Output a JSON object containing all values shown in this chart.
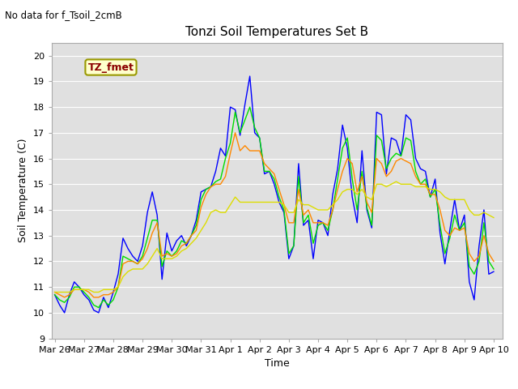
{
  "title": "Tonzi Soil Temperatures Set B",
  "ylabel": "Soil Temperature (C)",
  "xlabel": "Time",
  "no_data_text": "No data for f_Tsoil_2cmB",
  "tz_fmet_label": "TZ_fmet",
  "ylim": [
    9.0,
    20.5
  ],
  "yticks": [
    9.0,
    10.0,
    11.0,
    12.0,
    13.0,
    14.0,
    15.0,
    16.0,
    17.0,
    18.0,
    19.0,
    20.0
  ],
  "colors": {
    "4cm": "#0000ff",
    "8cm": "#00dd00",
    "16cm": "#ff8800",
    "32cm": "#dddd00"
  },
  "bg_color": "#e0e0e0",
  "x_tick_labels": [
    "Mar 26",
    "Mar 27",
    "Mar 28",
    "Mar 29",
    "Mar 30",
    "Mar 31",
    "Apr 1",
    "Apr 2",
    "Apr 3",
    "Apr 4",
    "Apr 5",
    "Apr 6",
    "Apr 7",
    "Apr 8",
    "Apr 9",
    "Apr 10"
  ],
  "data_4cm": [
    10.7,
    10.3,
    10.0,
    10.7,
    11.2,
    11.0,
    10.7,
    10.5,
    10.1,
    10.0,
    10.6,
    10.2,
    10.8,
    11.5,
    12.9,
    12.5,
    12.2,
    12.0,
    12.6,
    13.9,
    14.7,
    13.8,
    11.3,
    13.1,
    12.4,
    12.8,
    13.0,
    12.6,
    13.0,
    13.6,
    14.7,
    14.8,
    14.9,
    15.5,
    16.4,
    16.1,
    18.0,
    17.9,
    16.9,
    18.1,
    19.2,
    17.0,
    16.8,
    15.4,
    15.5,
    15.0,
    14.3,
    13.9,
    12.1,
    12.6,
    15.8,
    13.4,
    13.6,
    12.1,
    13.6,
    13.5,
    13.0,
    14.6,
    15.6,
    17.3,
    16.4,
    14.5,
    13.5,
    16.3,
    14.0,
    13.3,
    17.8,
    17.7,
    15.4,
    16.8,
    16.7,
    16.1,
    17.7,
    17.5,
    16.0,
    15.6,
    15.5,
    14.5,
    15.2,
    13.1,
    11.9,
    13.2,
    14.4,
    13.2,
    13.8,
    11.2,
    10.5,
    12.6,
    14.0,
    11.5,
    11.6
  ],
  "data_8cm": [
    10.7,
    10.5,
    10.4,
    10.6,
    11.0,
    11.0,
    10.8,
    10.6,
    10.3,
    10.2,
    10.5,
    10.3,
    10.5,
    11.0,
    12.2,
    12.1,
    12.0,
    11.9,
    12.2,
    12.9,
    13.6,
    13.6,
    11.8,
    12.4,
    12.2,
    12.4,
    12.8,
    12.7,
    13.0,
    13.4,
    14.4,
    14.8,
    14.9,
    15.1,
    15.2,
    16.0,
    16.6,
    17.8,
    17.0,
    17.5,
    18.0,
    17.2,
    16.8,
    15.5,
    15.5,
    15.2,
    14.5,
    14.0,
    12.3,
    12.6,
    15.3,
    13.5,
    13.8,
    12.7,
    13.4,
    13.5,
    13.2,
    14.0,
    15.2,
    16.4,
    16.8,
    15.2,
    14.0,
    15.5,
    14.1,
    13.4,
    16.9,
    16.7,
    15.6,
    16.0,
    16.2,
    16.1,
    16.8,
    16.7,
    15.5,
    15.0,
    15.2,
    14.5,
    14.8,
    13.4,
    12.3,
    12.9,
    13.8,
    13.2,
    13.5,
    11.8,
    11.5,
    12.0,
    13.5,
    12.0,
    11.7
  ],
  "data_16cm": [
    10.8,
    10.7,
    10.6,
    10.7,
    10.9,
    10.9,
    10.9,
    10.8,
    10.6,
    10.6,
    10.7,
    10.7,
    10.8,
    11.0,
    11.9,
    12.0,
    12.0,
    11.9,
    12.1,
    12.5,
    13.1,
    13.5,
    12.2,
    12.3,
    12.2,
    12.3,
    12.6,
    12.7,
    13.0,
    13.2,
    14.1,
    14.6,
    14.9,
    15.0,
    15.0,
    15.3,
    16.2,
    17.0,
    16.3,
    16.5,
    16.3,
    16.3,
    16.3,
    15.8,
    15.6,
    15.4,
    14.8,
    14.2,
    13.5,
    13.5,
    14.8,
    13.8,
    14.0,
    13.5,
    13.5,
    13.5,
    13.4,
    14.0,
    14.8,
    15.5,
    16.0,
    15.8,
    14.7,
    15.3,
    14.3,
    13.9,
    16.0,
    15.8,
    15.3,
    15.5,
    15.9,
    16.0,
    15.9,
    15.8,
    15.3,
    15.0,
    15.0,
    14.6,
    14.6,
    14.0,
    13.2,
    13.0,
    13.3,
    13.2,
    13.3,
    12.3,
    12.0,
    12.2,
    13.0,
    12.3,
    12.0
  ],
  "data_32cm": [
    10.8,
    10.8,
    10.8,
    10.8,
    10.9,
    10.9,
    10.9,
    10.9,
    10.8,
    10.8,
    10.9,
    10.9,
    10.9,
    11.0,
    11.4,
    11.6,
    11.7,
    11.7,
    11.7,
    11.9,
    12.2,
    12.5,
    12.1,
    12.1,
    12.1,
    12.2,
    12.4,
    12.5,
    12.7,
    12.9,
    13.2,
    13.5,
    13.9,
    14.0,
    13.9,
    13.9,
    14.2,
    14.5,
    14.3,
    14.3,
    14.3,
    14.3,
    14.3,
    14.3,
    14.3,
    14.3,
    14.3,
    14.2,
    13.9,
    13.9,
    14.4,
    14.2,
    14.2,
    14.1,
    14.0,
    14.0,
    14.0,
    14.2,
    14.4,
    14.7,
    14.8,
    14.8,
    14.6,
    14.8,
    14.5,
    14.4,
    15.0,
    15.0,
    14.9,
    15.0,
    15.1,
    15.0,
    15.0,
    15.0,
    14.9,
    14.9,
    14.9,
    14.8,
    14.8,
    14.7,
    14.5,
    14.4,
    14.4,
    14.4,
    14.4,
    14.0,
    13.8,
    13.8,
    13.9,
    13.8,
    13.7
  ]
}
